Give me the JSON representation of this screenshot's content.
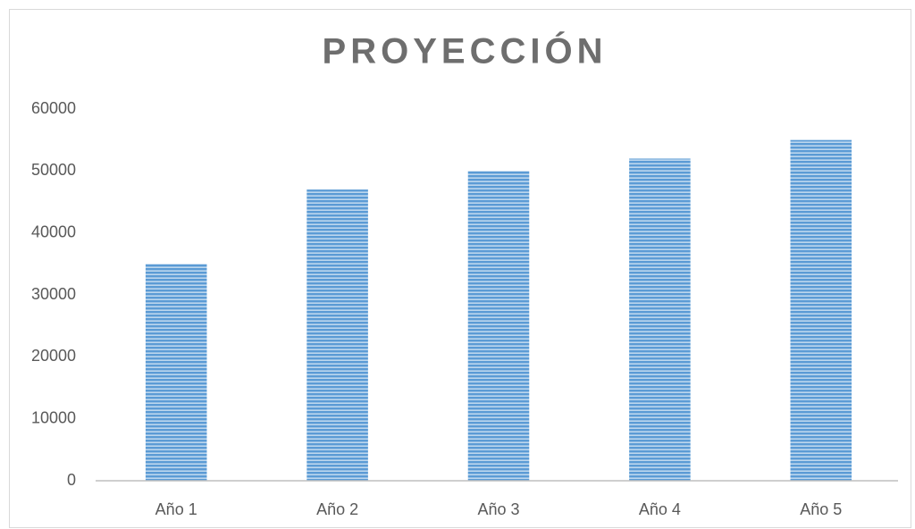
{
  "chart_data": {
    "type": "bar",
    "title": "PROYECCIÓN",
    "categories": [
      "Año 1",
      "Año 2",
      "Año 3",
      "Año 4",
      "Año 5"
    ],
    "values": [
      35000,
      47000,
      50000,
      52000,
      55000
    ],
    "color": "#5b9bd5",
    "ylim": [
      0,
      60000
    ],
    "yticks": [
      0,
      10000,
      20000,
      30000,
      40000,
      50000,
      60000
    ],
    "grid": false
  }
}
